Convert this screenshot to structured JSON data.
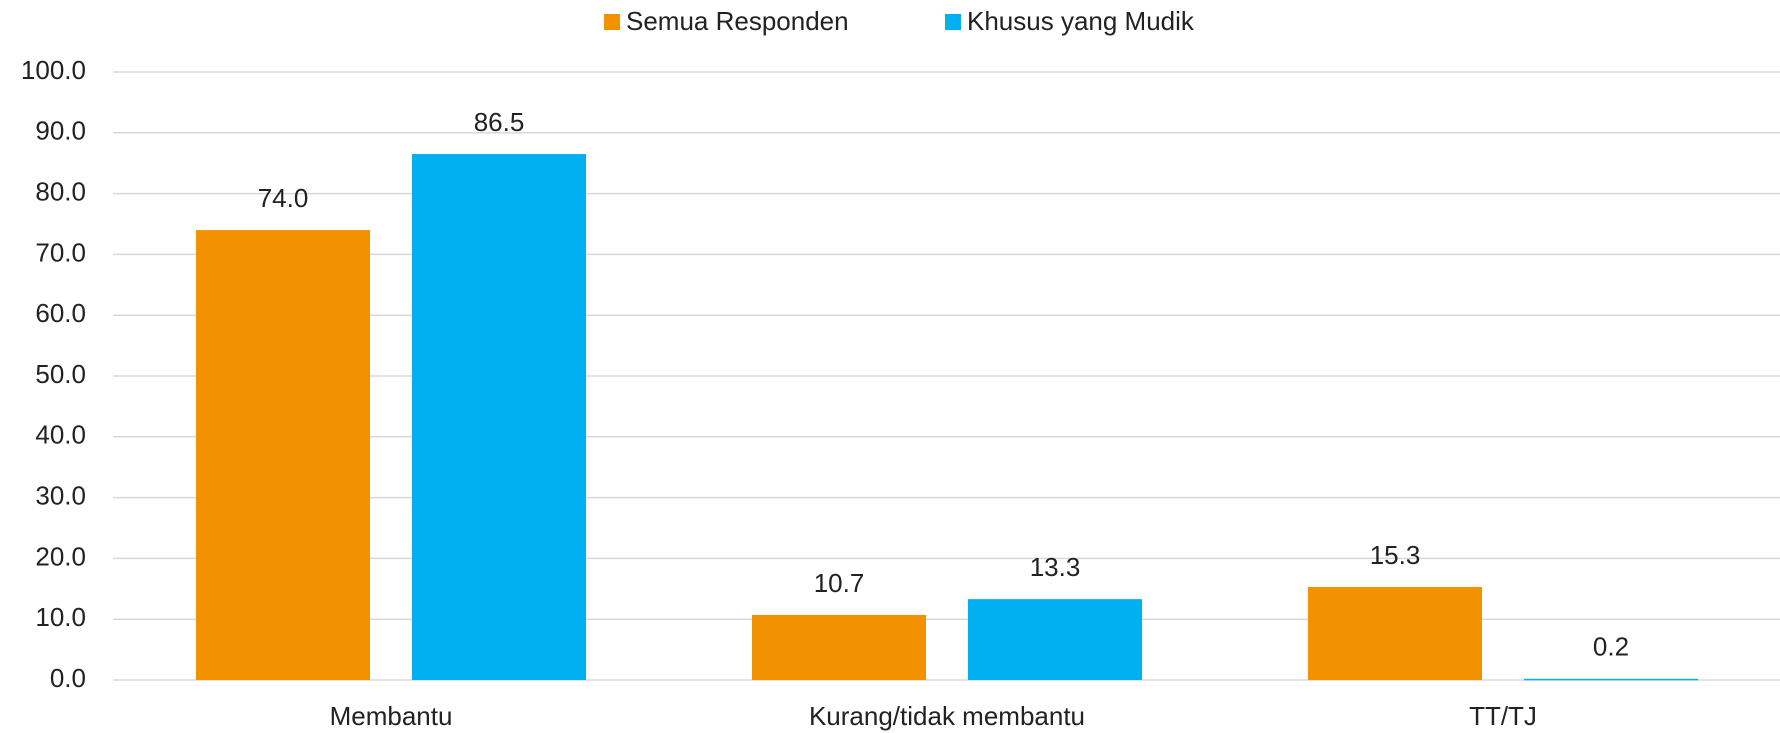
{
  "chart_data": {
    "type": "bar",
    "categories": [
      "Membantu",
      "Kurang/tidak membantu",
      "TT/TJ"
    ],
    "series": [
      {
        "name": "Semua Responden",
        "color": "#f39200",
        "values": [
          74.0,
          10.7,
          15.3
        ],
        "value_labels": [
          "74.0",
          "10.7",
          "15.3"
        ]
      },
      {
        "name": "Khusus yang Mudik",
        "color": "#00b0f0",
        "values": [
          86.5,
          13.3,
          0.2
        ],
        "value_labels": [
          "86.5",
          "13.3",
          "0.2"
        ]
      }
    ],
    "ylim": [
      0,
      100
    ],
    "yticks": [
      {
        "value": 0,
        "label": "0.0"
      },
      {
        "value": 10,
        "label": "10.0"
      },
      {
        "value": 20,
        "label": "20.0"
      },
      {
        "value": 30,
        "label": "30.0"
      },
      {
        "value": 40,
        "label": "40.0"
      },
      {
        "value": 50,
        "label": "50.0"
      },
      {
        "value": 60,
        "label": "60.0"
      },
      {
        "value": 70,
        "label": "70.0"
      },
      {
        "value": 80,
        "label": "80.0"
      },
      {
        "value": 90,
        "label": "90.0"
      },
      {
        "value": 100,
        "label": "100.0"
      }
    ],
    "grid": true,
    "legend": "top"
  }
}
